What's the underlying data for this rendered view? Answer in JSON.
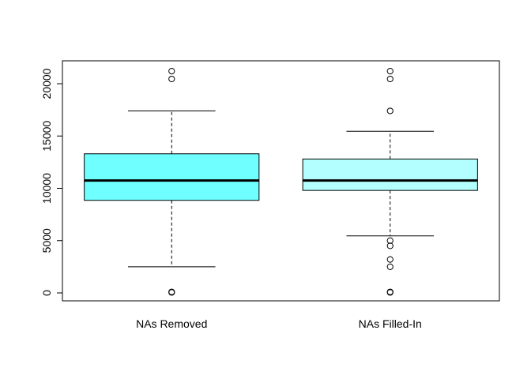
{
  "chart_data": {
    "type": "boxplot",
    "title": "",
    "xlabel": "",
    "ylabel": "",
    "ylim": [
      -500,
      22000
    ],
    "yticks": [
      0,
      5000,
      10000,
      15000,
      20000
    ],
    "tick_labels": [
      "0",
      "5000",
      "10000",
      "15000",
      "20000"
    ],
    "grid": false,
    "categories": [
      "NAs Removed",
      "NAs Filled-In"
    ],
    "boxes": [
      {
        "category": "NAs Removed",
        "fill": "#70FFFF",
        "whisker_low": 2500,
        "q1": 8850,
        "median": 10750,
        "q3": 13300,
        "whisker_high": 17400,
        "outliers": [
          21200,
          20450,
          100,
          50
        ]
      },
      {
        "category": "NAs Filled-In",
        "fill": "#B3FFFF",
        "whisker_low": 5450,
        "q1": 9800,
        "median": 10750,
        "q3": 12800,
        "whisker_high": 15450,
        "outliers": [
          21200,
          20450,
          17400,
          5000,
          4500,
          3200,
          2500,
          100,
          50
        ]
      }
    ]
  }
}
